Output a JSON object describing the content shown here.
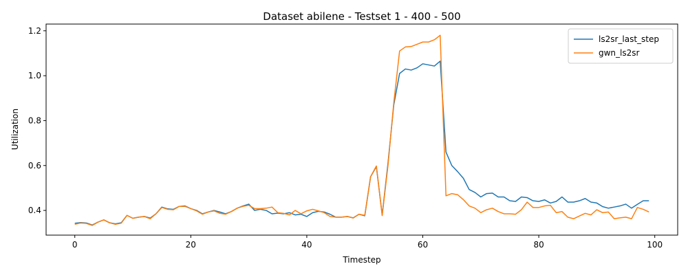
{
  "chart_data": {
    "type": "line",
    "title": "Dataset abilene - Testset 1 - 400 - 500",
    "xlabel": "Timestep",
    "ylabel": "Utilization",
    "xlim": [
      -4.95,
      103.95
    ],
    "ylim": [
      0.29,
      1.23
    ],
    "x_ticks": [
      0,
      20,
      40,
      60,
      80,
      100
    ],
    "y_ticks": [
      0.4,
      0.6,
      0.8,
      1.0,
      1.2
    ],
    "x_tick_labels": [
      "0",
      "20",
      "40",
      "60",
      "80",
      "100"
    ],
    "y_tick_labels": [
      "0.4",
      "0.6",
      "0.8",
      "1.0",
      "1.2"
    ],
    "grid": false,
    "legend_position": "top-right",
    "series": [
      {
        "name": "ls2sr_last_step",
        "color": "#1f77b4",
        "values": [
          0.343,
          0.346,
          0.344,
          0.335,
          0.348,
          0.358,
          0.345,
          0.34,
          0.345,
          0.378,
          0.365,
          0.37,
          0.373,
          0.366,
          0.385,
          0.415,
          0.407,
          0.405,
          0.418,
          0.42,
          0.408,
          0.4,
          0.385,
          0.393,
          0.4,
          0.393,
          0.385,
          0.395,
          0.41,
          0.42,
          0.428,
          0.4,
          0.405,
          0.4,
          0.385,
          0.388,
          0.385,
          0.39,
          0.38,
          0.383,
          0.373,
          0.39,
          0.396,
          0.393,
          0.383,
          0.37,
          0.37,
          0.373,
          0.367,
          0.383,
          0.376,
          0.55,
          0.595,
          0.38,
          0.61,
          0.87,
          1.01,
          1.03,
          1.025,
          1.035,
          1.053,
          1.048,
          1.043,
          1.065,
          0.66,
          0.6,
          0.573,
          0.543,
          0.493,
          0.48,
          0.46,
          0.475,
          0.477,
          0.46,
          0.46,
          0.443,
          0.44,
          0.46,
          0.457,
          0.443,
          0.44,
          0.447,
          0.433,
          0.44,
          0.46,
          0.437,
          0.437,
          0.443,
          0.453,
          0.437,
          0.433,
          0.417,
          0.41,
          0.415,
          0.42,
          0.428,
          0.41,
          0.427,
          0.443,
          0.443
        ]
      },
      {
        "name": "gwn_ls2sr",
        "color": "#ff7f0e",
        "values": [
          0.338,
          0.344,
          0.342,
          0.333,
          0.348,
          0.358,
          0.345,
          0.338,
          0.343,
          0.378,
          0.365,
          0.37,
          0.373,
          0.363,
          0.385,
          0.413,
          0.405,
          0.403,
          0.418,
          0.418,
          0.408,
          0.398,
          0.383,
          0.393,
          0.398,
          0.387,
          0.383,
          0.395,
          0.41,
          0.418,
          0.423,
          0.408,
          0.408,
          0.41,
          0.415,
          0.39,
          0.387,
          0.38,
          0.4,
          0.385,
          0.398,
          0.405,
          0.398,
          0.39,
          0.373,
          0.37,
          0.37,
          0.373,
          0.366,
          0.383,
          0.378,
          0.55,
          0.598,
          0.377,
          0.6,
          0.88,
          1.11,
          1.128,
          1.13,
          1.14,
          1.15,
          1.15,
          1.16,
          1.18,
          0.465,
          0.475,
          0.47,
          0.448,
          0.42,
          0.41,
          0.39,
          0.403,
          0.41,
          0.395,
          0.385,
          0.385,
          0.383,
          0.403,
          0.437,
          0.413,
          0.413,
          0.42,
          0.423,
          0.39,
          0.395,
          0.37,
          0.363,
          0.375,
          0.387,
          0.38,
          0.403,
          0.39,
          0.393,
          0.363,
          0.367,
          0.37,
          0.363,
          0.413,
          0.405,
          0.393
        ]
      }
    ]
  }
}
